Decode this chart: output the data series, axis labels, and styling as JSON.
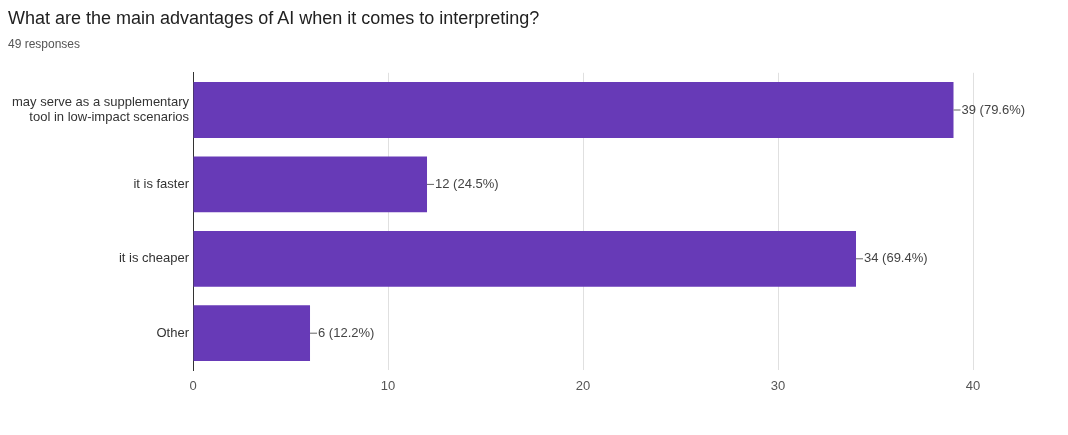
{
  "chart_data": {
    "type": "bar",
    "title": "What are the main advantages of AI when it comes to interpreting?",
    "subtitle": "49 responses",
    "orientation": "horizontal",
    "categories": [
      "may serve as a supplementary tool in low-impact scenarios",
      "it is faster",
      "it is cheaper",
      "Other"
    ],
    "values": [
      39,
      12,
      34,
      6
    ],
    "value_labels": [
      "39 (79.6%)",
      "12 (24.5%)",
      "34 (69.4%)",
      "6 (12.2%)"
    ],
    "color": "#673ab7",
    "xlim": [
      0,
      40
    ],
    "xticks": [
      0,
      10,
      20,
      30,
      40
    ],
    "grid": "x",
    "legend": false
  }
}
